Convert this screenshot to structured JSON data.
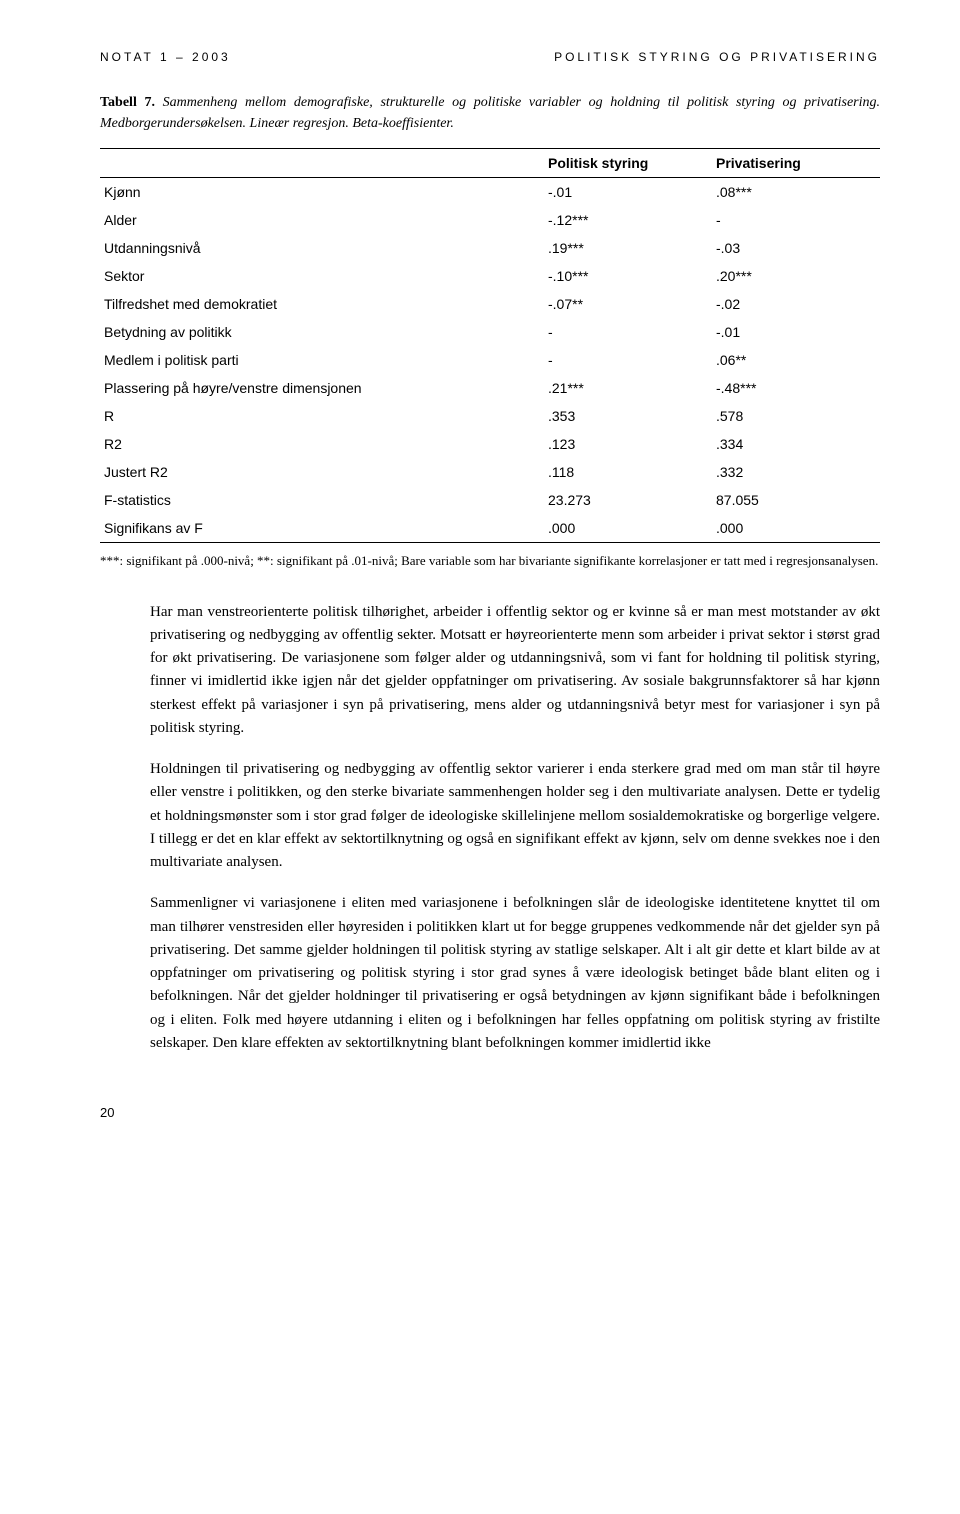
{
  "header": {
    "left": "NOTAT 1 – 2003",
    "right": "POLITISK STYRING OG PRIVATISERING"
  },
  "caption": {
    "label": "Tabell 7.",
    "text": "Sammenheng mellom demografiske, strukturelle og politiske variabler og holdning til politisk styring og privatisering. Medborgerundersøkelsen. Lineær regresjon. Beta-koeffisienter."
  },
  "table": {
    "columns": [
      "",
      "Politisk styring",
      "Privatisering"
    ],
    "rows": [
      [
        "Kjønn",
        "-.01",
        ".08***"
      ],
      [
        "Alder",
        "-.12***",
        "-"
      ],
      [
        "Utdanningsnivå",
        ".19***",
        "-.03"
      ],
      [
        "Sektor",
        "-.10***",
        ".20***"
      ],
      [
        "Tilfredshet med demokratiet",
        "-.07**",
        "-.02"
      ],
      [
        "Betydning av politikk",
        "-",
        "-.01"
      ],
      [
        "Medlem i politisk parti",
        "-",
        ".06**"
      ],
      [
        "Plassering på høyre/venstre dimensjonen",
        ".21***",
        "-.48***"
      ],
      [
        "R",
        ".353",
        ".578"
      ],
      [
        "R2",
        ".123",
        ".334"
      ],
      [
        "Justert R2",
        ".118",
        ".332"
      ],
      [
        "F-statistics",
        "23.273",
        "87.055"
      ],
      [
        "Signifikans av F",
        ".000",
        ".000"
      ]
    ],
    "col_widths": [
      "auto",
      "160px",
      "160px"
    ],
    "font_size": 14,
    "border_color": "#000000"
  },
  "footnote": "***: signifikant på .000-nivå; **: signifikant på .01-nivå; Bare variable som har bivariante signifikante korrelasjoner er tatt med i regresjonsanalysen.",
  "paragraphs": [
    "Har man venstreorienterte politisk tilhørighet, arbeider i offentlig sektor og er kvinne så er man mest motstander av økt privatisering og nedbygging av offentlig sekter. Motsatt er høyreorienterte menn som arbeider i privat sektor i størst grad for økt privatisering. De variasjonene som følger alder og utdanningsnivå, som vi fant for holdning til politisk styring, finner vi imidlertid ikke igjen når det gjelder oppfatninger om privatisering. Av sosiale bakgrunnsfaktorer så har kjønn sterkest effekt på variasjoner i syn på privatisering, mens alder og utdanningsnivå betyr mest for variasjoner i syn på politisk styring.",
    "Holdningen til privatisering og nedbygging av offentlig sektor varierer i enda sterkere grad med om man står til høyre eller venstre i politikken, og den sterke bivariate sammenhengen holder seg i den multivariate analysen. Dette er tydelig et holdningsmønster som i stor grad følger de ideologiske skillelinjene mellom sosialdemokratiske og borgerlige velgere. I tillegg er det en klar effekt av sektortilknytning og også en signifikant effekt av kjønn, selv om denne svekkes noe i den multivariate analysen.",
    "Sammenligner vi variasjonene i eliten med variasjonene i befolkningen slår de ideologiske identitetene knyttet til om man tilhører venstresiden eller høyresiden i politikken klart ut for begge gruppenes vedkommende når det gjelder syn på privatisering. Det samme gjelder holdningen til politisk styring av statlige selskaper. Alt i alt gir dette et klart bilde av at oppfatninger om privatisering og politisk styring i stor grad synes å være ideologisk betinget både blant eliten og i befolkningen. Når det gjelder holdninger til privatisering er også betydningen av kjønn signifikant både i befolkningen og i eliten. Folk med høyere utdanning i eliten og i befolkningen har felles oppfatning om politisk styring av fristilte selskaper. Den klare effekten av sektortilknytning blant befolkningen kommer imidlertid ikke"
  ],
  "page_number": "20",
  "style": {
    "background_color": "#ffffff",
    "text_color": "#000000",
    "body_font_size": 15,
    "caption_font_size": 14,
    "header_font_size": 12,
    "header_letter_spacing": 3
  }
}
